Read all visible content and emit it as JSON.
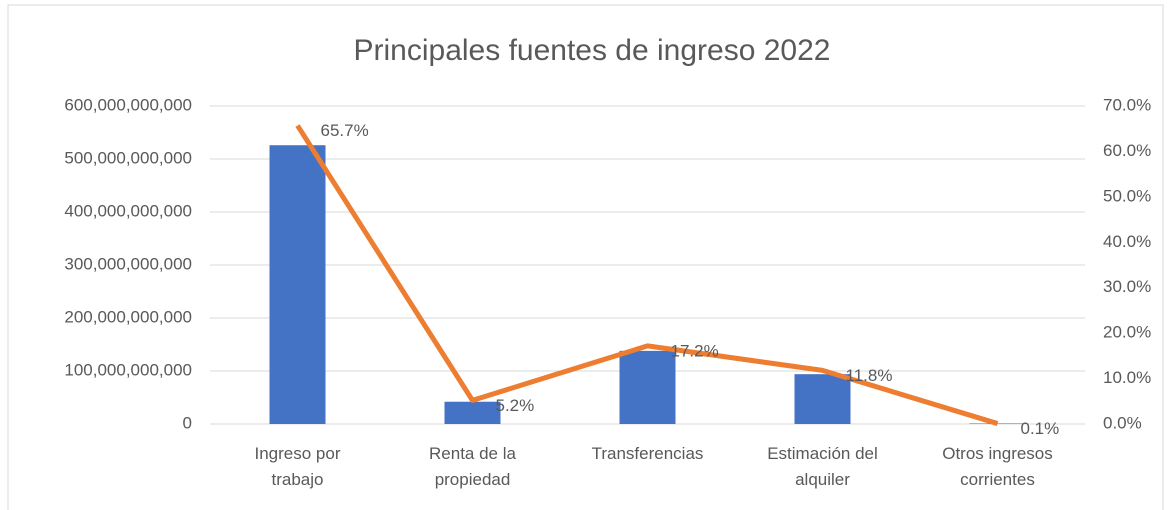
{
  "chart_data": {
    "type": "combo",
    "title": "Principales fuentes de ingreso 2022",
    "categories": [
      "Ingreso por\ntrabajo",
      "Renta de la\npropiedad",
      "Transferencias",
      "Estimación del\nalquiler",
      "Otros ingresos\ncorrientes"
    ],
    "series": [
      {
        "type": "bar",
        "color": "#4472c4",
        "values": [
          526000000000,
          42000000000,
          138000000000,
          94000000000,
          1000000000
        ]
      },
      {
        "type": "line",
        "color": "#ed7d31",
        "axis": "y2",
        "values": [
          65.7,
          5.2,
          17.2,
          11.8,
          0.1
        ],
        "value_labels": [
          "65.7%",
          "5.2%",
          "17.2%",
          "11.8%",
          "0.1%"
        ]
      }
    ],
    "ylim": [
      0,
      600000000000
    ],
    "yticks": [
      0,
      {
        "value": 100000000000,
        "label": "100,000,000,000"
      },
      {
        "value": 200000000000,
        "label": "200,000,000,000"
      },
      {
        "value": 300000000000,
        "label": "300,000,000,000"
      },
      {
        "value": 400000000000,
        "label": "400,000,000,000"
      },
      {
        "value": 500000000000,
        "label": "500,000,000,000"
      },
      {
        "value": 600000000000,
        "label": "600,000,000,000"
      }
    ],
    "y2lim": [
      0,
      70
    ],
    "y2ticks": [
      {
        "value": 0,
        "label": "0.0%"
      },
      {
        "value": 10,
        "label": "10.0%"
      },
      {
        "value": 20,
        "label": "20.0%"
      },
      {
        "value": 30,
        "label": "30.0%"
      },
      {
        "value": 40,
        "label": "40.0%"
      },
      {
        "value": 50,
        "label": "50.0%"
      },
      {
        "value": 60,
        "label": "60.0%"
      },
      {
        "value": 70,
        "label": "70.0%"
      }
    ],
    "grid": true
  }
}
